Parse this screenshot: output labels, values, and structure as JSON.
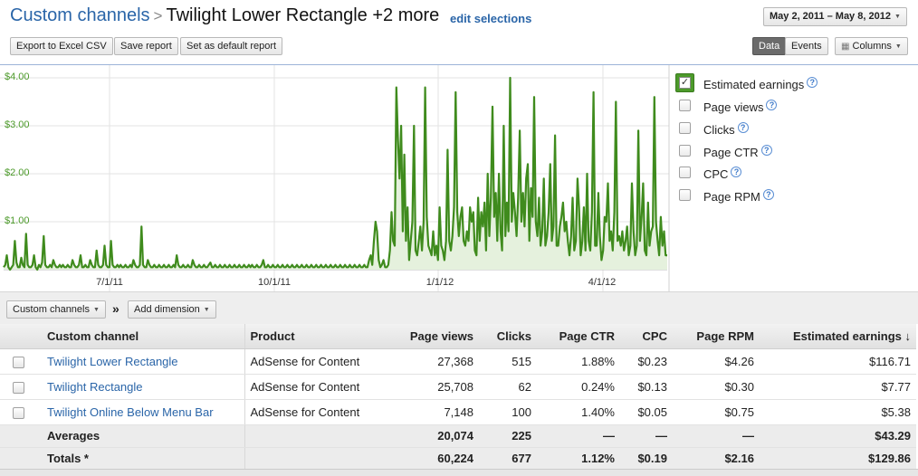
{
  "header": {
    "breadcrumb_link": "Custom channels",
    "breadcrumb_sep": ">",
    "breadcrumb_current": "Twilight Lower Rectangle +2 more",
    "edit_link": "edit selections",
    "date_range": "May 2, 2011 – May 8, 2012"
  },
  "toolbar": {
    "export_label": "Export to Excel CSV",
    "save_label": "Save report",
    "default_label": "Set as default report",
    "data_tab": "Data",
    "events_tab": "Events",
    "columns_label": "Columns"
  },
  "chart_data": {
    "type": "area",
    "series": [
      {
        "name": "Estimated earnings",
        "color": "#4c9a2a",
        "values": [
          0.05,
          0.1,
          0.3,
          0.05,
          0.0,
          0.05,
          0.1,
          0.6,
          0.15,
          0.05,
          0.05,
          0.25,
          0.1,
          0.05,
          0.75,
          0.1,
          0.05,
          0.05,
          0.1,
          0.3,
          0.05,
          0.0,
          0.1,
          0.05,
          0.15,
          0.7,
          0.1,
          0.05,
          0.05,
          0.1,
          0.05,
          0.2,
          0.1,
          0.05,
          0.05,
          0.1,
          0.05,
          0.1,
          0.05,
          0.05,
          0.1,
          0.05,
          0.05,
          0.2,
          0.1,
          0.05,
          0.05,
          0.1,
          0.3,
          0.05,
          0.05,
          0.1,
          0.05,
          0.05,
          0.2,
          0.1,
          0.05,
          0.05,
          0.4,
          0.1,
          0.05,
          0.05,
          0.1,
          0.5,
          0.1,
          0.05,
          0.05,
          0.6,
          0.1,
          0.05,
          0.05,
          0.1,
          0.05,
          0.1,
          0.05,
          0.05,
          0.1,
          0.05,
          0.05,
          0.1,
          0.05,
          0.2,
          0.1,
          0.05,
          0.05,
          0.1,
          0.9,
          0.1,
          0.05,
          0.05,
          0.2,
          0.1,
          0.05,
          0.05,
          0.1,
          0.05,
          0.05,
          0.1,
          0.05,
          0.05,
          0.1,
          0.05,
          0.05,
          0.1,
          0.05,
          0.05,
          0.1,
          0.05,
          0.3,
          0.1,
          0.05,
          0.05,
          0.1,
          0.05,
          0.05,
          0.1,
          0.05,
          0.05,
          0.2,
          0.1,
          0.05,
          0.05,
          0.1,
          0.05,
          0.05,
          0.1,
          0.05,
          0.05,
          0.1,
          0.15,
          0.05,
          0.05,
          0.1,
          0.05,
          0.05,
          0.1,
          0.05,
          0.05,
          0.1,
          0.05,
          0.05,
          0.1,
          0.05,
          0.05,
          0.1,
          0.05,
          0.05,
          0.1,
          0.05,
          0.05,
          0.1,
          0.05,
          0.05,
          0.1,
          0.05,
          0.1,
          0.05,
          0.05,
          0.1,
          0.05,
          0.05,
          0.1,
          0.2,
          0.05,
          0.05,
          0.1,
          0.05,
          0.05,
          0.1,
          0.05,
          0.05,
          0.1,
          0.05,
          0.05,
          0.1,
          0.05,
          0.05,
          0.1,
          0.05,
          0.05,
          0.1,
          0.05,
          0.05,
          0.1,
          0.05,
          0.05,
          0.1,
          0.05,
          0.05,
          0.1,
          0.05,
          0.05,
          0.1,
          0.05,
          0.05,
          0.1,
          0.05,
          0.05,
          0.1,
          0.05,
          0.05,
          0.1,
          0.05,
          0.05,
          0.1,
          0.05,
          0.05,
          0.1,
          0.05,
          0.05,
          0.1,
          0.05,
          0.05,
          0.1,
          0.05,
          0.05,
          0.1,
          0.05,
          0.05,
          0.1,
          0.05,
          0.05,
          0.1,
          0.05,
          0.05,
          0.1,
          0.05,
          0.05,
          0.2,
          0.3,
          0.1,
          0.6,
          1.0,
          0.8,
          0.2,
          0.05,
          0.1,
          0.2,
          0.05,
          0.05,
          0.1,
          0.4,
          1.2,
          0.6,
          0.5,
          3.8,
          2.7,
          1.9,
          3.0,
          0.8,
          2.4,
          0.6,
          1.3,
          0.2,
          0.6,
          1.0,
          3.0,
          0.4,
          0.3,
          0.6,
          0.9,
          0.4,
          1.0,
          3.8,
          1.1,
          0.5,
          0.4,
          0.3,
          0.8,
          0.3,
          0.5,
          0.2,
          1.3,
          0.5,
          0.4,
          0.2,
          0.6,
          2.5,
          0.6,
          0.4,
          0.7,
          1.3,
          3.7,
          1.2,
          0.7,
          1.1,
          1.3,
          0.6,
          0.5,
          0.8,
          0.6,
          1.3,
          1.0,
          1.2,
          0.4,
          0.3,
          1.5,
          0.6,
          1.2,
          0.9,
          1.4,
          0.4,
          2.0,
          0.7,
          1.5,
          3.4,
          1.1,
          1.6,
          0.6,
          2.0,
          0.8,
          0.4,
          3.0,
          0.7,
          1.4,
          0.8,
          4.0,
          1.0,
          1.6,
          1.2,
          0.7,
          1.5,
          2.9,
          1.0,
          1.6,
          0.9,
          1.9,
          2.2,
          0.6,
          1.7,
          1.1,
          3.6,
          1.0,
          0.7,
          1.5,
          0.5,
          0.8,
          1.9,
          0.5,
          0.7,
          1.2,
          2.2,
          0.6,
          0.9,
          2.8,
          0.5,
          0.5,
          0.9,
          1.1,
          1.4,
          0.8,
          1.0,
          0.6,
          0.3,
          0.7,
          1.5,
          0.4,
          0.6,
          1.9,
          1.3,
          0.3,
          0.6,
          1.3,
          0.4,
          2.0,
          0.6,
          0.4,
          1.2,
          3.7,
          0.5,
          0.5,
          1.6,
          0.7,
          0.2,
          0.4,
          1.1,
          1.0,
          1.8,
          0.6,
          0.8,
          0.4,
          1.2,
          3.5,
          0.6,
          0.7,
          0.5,
          0.8,
          0.4,
          0.6,
          0.9,
          0.3,
          0.5,
          1.8,
          0.8,
          0.3,
          0.5,
          2.9,
          0.6,
          1.1,
          1.8,
          0.4,
          0.3,
          1.4,
          0.5,
          0.8,
          0.9,
          3.6,
          1.0,
          0.6,
          0.3,
          1.1,
          0.5,
          0.8,
          0.3,
          0.3
        ]
      }
    ],
    "x_tick_labels": [
      "7/1/11",
      "10/1/11",
      "1/1/12",
      "4/1/12"
    ],
    "y_tick_labels": [
      "$4.00",
      "$3.00",
      "$2.00",
      "$1.00"
    ],
    "ylim": [
      0,
      4
    ],
    "grid": true,
    "colors": {
      "line": "#3f8b1d",
      "fill": "#e5f1dd",
      "axis_text": "#4c9a2a"
    }
  },
  "legend": {
    "items": [
      {
        "label": "Estimated earnings",
        "checked": true
      },
      {
        "label": "Page views",
        "checked": false
      },
      {
        "label": "Clicks",
        "checked": false
      },
      {
        "label": "Page CTR",
        "checked": false
      },
      {
        "label": "CPC",
        "checked": false
      },
      {
        "label": "Page RPM",
        "checked": false
      }
    ]
  },
  "dimensions": {
    "selector_label": "Custom channels",
    "separator": "»",
    "add_label": "Add dimension"
  },
  "table": {
    "columns": [
      "Custom channel",
      "Product",
      "Page views",
      "Clicks",
      "Page CTR",
      "CPC",
      "Page RPM",
      "Estimated earnings"
    ],
    "sort_arrow": "↓",
    "rows": [
      {
        "channel": "Twilight Lower Rectangle",
        "product": "AdSense for Content",
        "page_views": "27,368",
        "clicks": "515",
        "ctr": "1.88%",
        "cpc": "$0.23",
        "rpm": "$4.26",
        "earnings": "$116.71"
      },
      {
        "channel": "Twilight Rectangle",
        "product": "AdSense for Content",
        "page_views": "25,708",
        "clicks": "62",
        "ctr": "0.24%",
        "cpc": "$0.13",
        "rpm": "$0.30",
        "earnings": "$7.77"
      },
      {
        "channel": "Twilight Online Below Menu Bar",
        "product": "AdSense for Content",
        "page_views": "7,148",
        "clicks": "100",
        "ctr": "1.40%",
        "cpc": "$0.05",
        "rpm": "$0.75",
        "earnings": "$5.38"
      }
    ],
    "averages": {
      "label": "Averages",
      "page_views": "20,074",
      "clicks": "225",
      "ctr": "—",
      "cpc": "—",
      "rpm": "—",
      "earnings": "$43.29"
    },
    "totals": {
      "label": "Totals *",
      "page_views": "60,224",
      "clicks": "677",
      "ctr": "1.12%",
      "cpc": "$0.19",
      "rpm": "$2.16",
      "earnings": "$129.86"
    }
  },
  "icons": {
    "help": "?",
    "checkmark": "✓",
    "dropdown": "▼",
    "columns_grid": "▦"
  }
}
